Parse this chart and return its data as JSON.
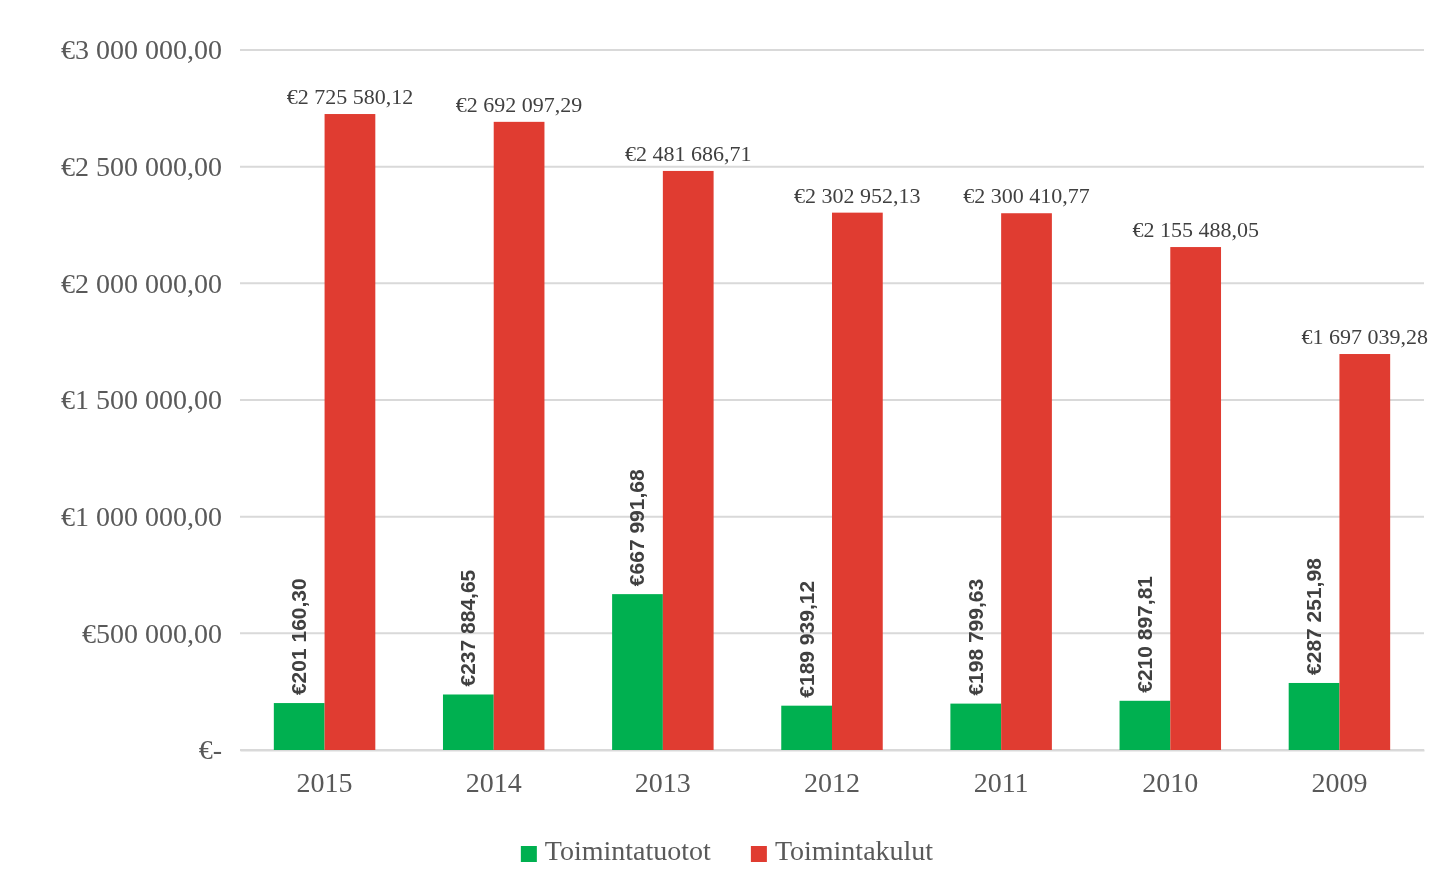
{
  "chart_data": {
    "type": "bar",
    "categories": [
      "2015",
      "2014",
      "2013",
      "2012",
      "2011",
      "2010",
      "2009"
    ],
    "series": [
      {
        "name": "Toimintatuotot",
        "color": "#00b050",
        "values": [
          201160.3,
          237884.65,
          667991.68,
          189939.12,
          198799.63,
          210897.81,
          287251.98
        ],
        "value_labels": [
          "€201 160,30",
          "€237 884,65",
          "€667 991,68",
          "€189 939,12",
          "€198 799,63",
          "€210 897,81",
          "€287 251,98"
        ]
      },
      {
        "name": "Toimintakulut",
        "color": "#e03c31",
        "values": [
          2725580.12,
          2692097.29,
          2481686.71,
          2302952.13,
          2300410.77,
          2155488.05,
          1697039.28
        ],
        "value_labels": [
          "€2 725 580,12",
          "€2 692 097,29",
          "€2 481 686,71",
          "€2 302 952,13",
          "€2 300 410,77",
          "€2 155 488,05",
          "€1 697 039,28"
        ]
      }
    ],
    "ylim": [
      0,
      3000000
    ],
    "yticks": [
      {
        "value": 0,
        "label": "€-"
      },
      {
        "value": 500000,
        "label": "€500 000,00"
      },
      {
        "value": 1000000,
        "label": "€1 000 000,00"
      },
      {
        "value": 1500000,
        "label": "€1 500 000,00"
      },
      {
        "value": 2000000,
        "label": "€2 000 000,00"
      },
      {
        "value": 2500000,
        "label": "€2 500 000,00"
      },
      {
        "value": 3000000,
        "label": "€3 000 000,00"
      }
    ],
    "grid": "y",
    "legend": "bottom"
  }
}
